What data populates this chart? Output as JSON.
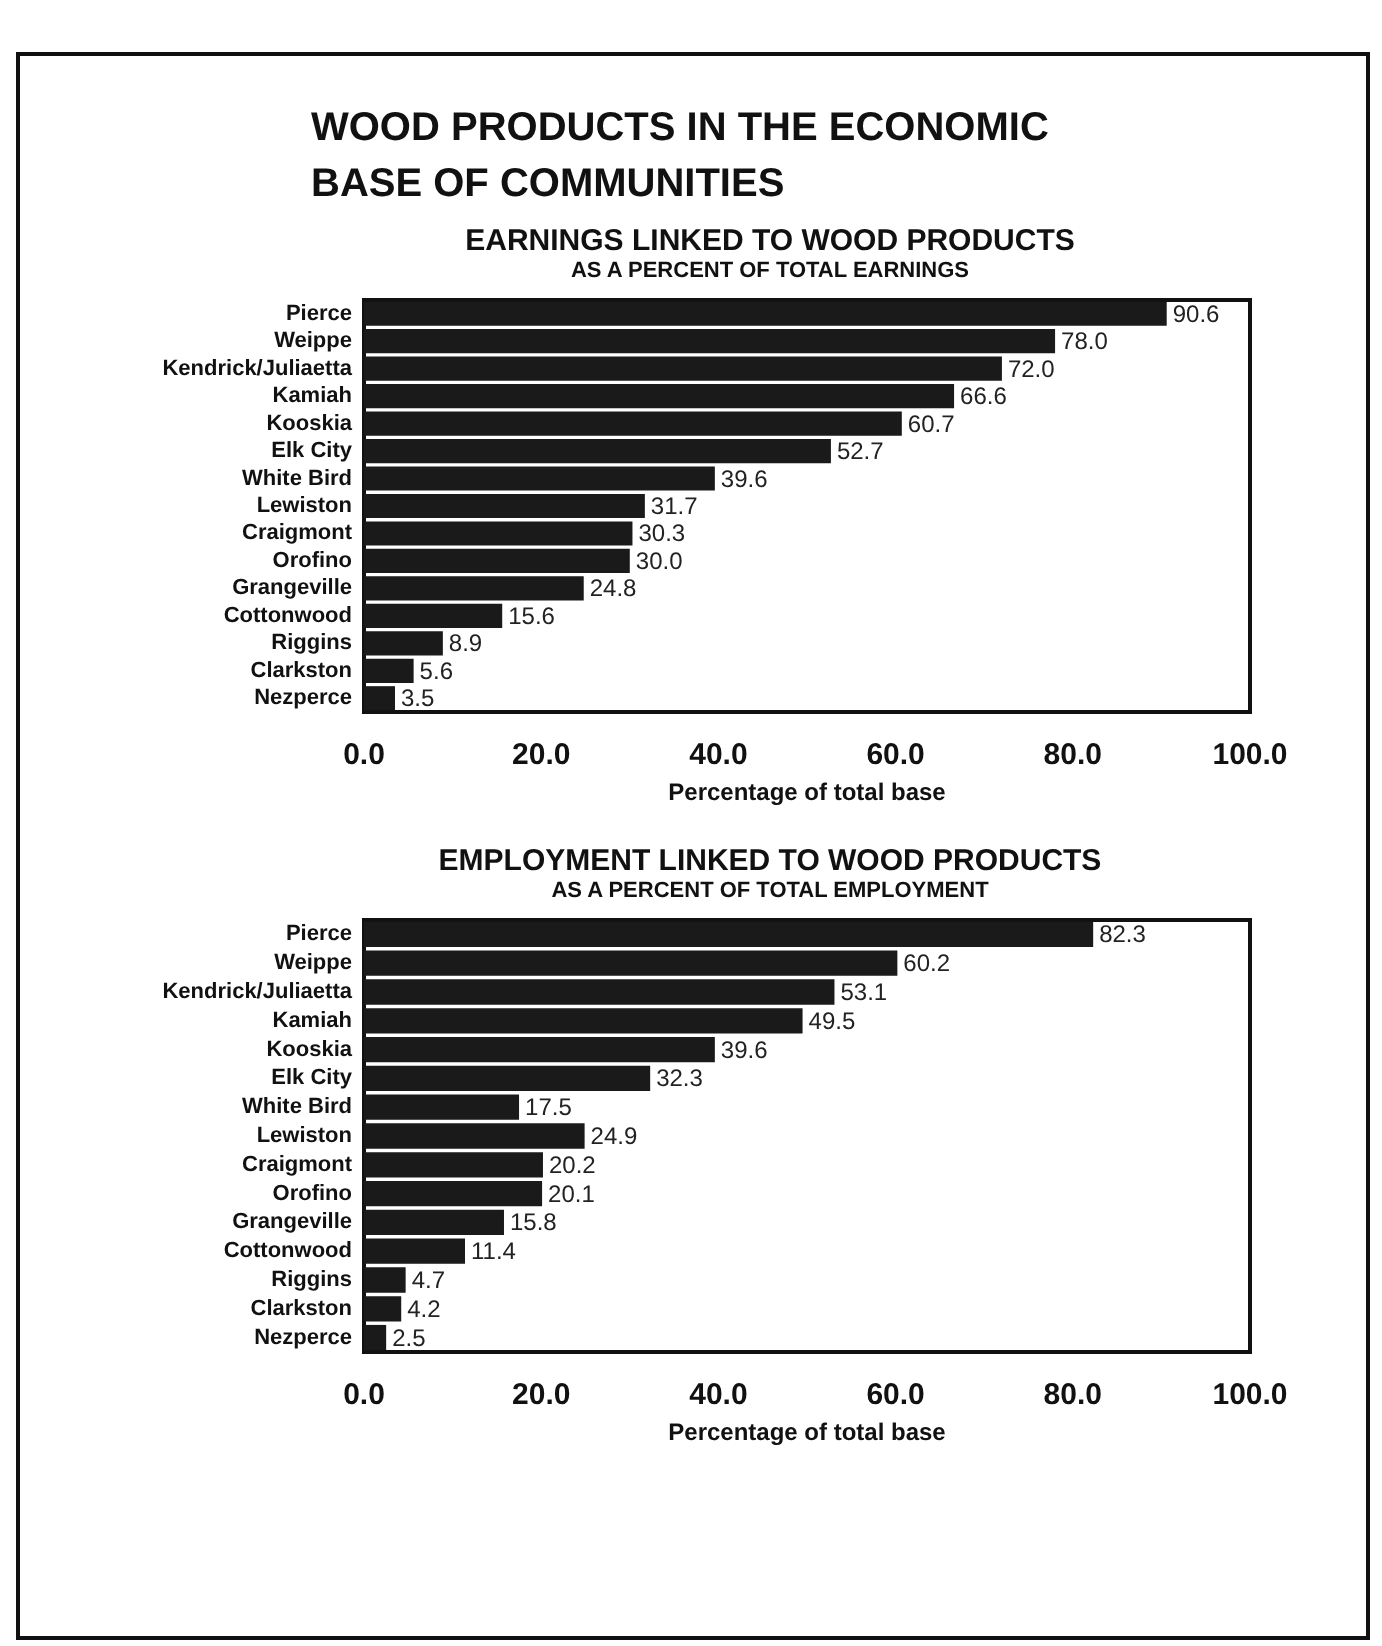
{
  "chart_data": [
    {
      "type": "bar",
      "orientation": "horizontal",
      "annotations": [
        "WOOD PRODUCTS IN THE ECONOMIC BASE OF COMMUNITIES"
      ],
      "title": "EARNINGS LINKED TO WOOD PRODUCTS",
      "subtitle": "AS A PERCENT OF TOTAL EARNINGS",
      "xlabel": "Percentage of total base",
      "categories": [
        "Pierce",
        "Weippe",
        "Kendrick/Juliaetta",
        "Kamiah",
        "Kooskia",
        "Elk City",
        "White Bird",
        "Lewiston",
        "Craigmont",
        "Orofino",
        "Grangeville",
        "Cottonwood",
        "Riggins",
        "Clarkston",
        "Nezperce"
      ],
      "values": [
        90.6,
        78.0,
        72.0,
        66.6,
        60.7,
        52.7,
        39.6,
        31.7,
        30.3,
        30.0,
        24.8,
        15.6,
        8.9,
        5.6,
        3.5
      ],
      "value_labels": [
        "90.6",
        "78.0",
        "72.0",
        "66.6",
        "60.7",
        "52.7",
        "39.6",
        "31.7",
        "30.3",
        "30.0",
        "24.8",
        "15.6",
        "8.9",
        "5.6",
        "3.5"
      ],
      "color": "#1a1a1a",
      "grid": false,
      "xlim": [
        0,
        100
      ],
      "xticks": [
        {
          "value": 0,
          "label": "0.0"
        },
        {
          "value": 20,
          "label": "20.0"
        },
        {
          "value": 40,
          "label": "40.0"
        },
        {
          "value": 60,
          "label": "60.0"
        },
        {
          "value": 80,
          "label": "80.0"
        },
        {
          "value": 100,
          "label": "100.0"
        }
      ]
    },
    {
      "type": "bar",
      "orientation": "horizontal",
      "title": "EMPLOYMENT LINKED TO WOOD PRODUCTS",
      "subtitle": "AS A PERCENT OF TOTAL EMPLOYMENT",
      "xlabel": "Percentage of total base",
      "categories": [
        "Pierce",
        "Weippe",
        "Kendrick/Juliaetta",
        "Kamiah",
        "Kooskia",
        "Elk City",
        "White Bird",
        "Lewiston",
        "Craigmont",
        "Orofino",
        "Grangeville",
        "Cottonwood",
        "Riggins",
        "Clarkston",
        "Nezperce"
      ],
      "values": [
        82.3,
        60.2,
        53.1,
        49.5,
        39.6,
        32.3,
        17.5,
        24.9,
        20.2,
        20.1,
        15.8,
        11.4,
        4.7,
        4.2,
        2.5
      ],
      "value_labels": [
        "82.3",
        "60.2",
        "53.1",
        "49.5",
        "39.6",
        "32.3",
        "17.5",
        "24.9",
        "20.2",
        "20.1",
        "15.8",
        "11.4",
        "4.7",
        "4.2",
        "2.5"
      ],
      "color": "#1a1a1a",
      "grid": false,
      "xlim": [
        0,
        100
      ],
      "xticks": [
        {
          "value": 0,
          "label": "0.0"
        },
        {
          "value": 20,
          "label": "20.0"
        },
        {
          "value": 40,
          "label": "40.0"
        },
        {
          "value": 60,
          "label": "60.0"
        },
        {
          "value": 80,
          "label": "80.0"
        },
        {
          "value": 100,
          "label": "100.0"
        }
      ]
    }
  ]
}
